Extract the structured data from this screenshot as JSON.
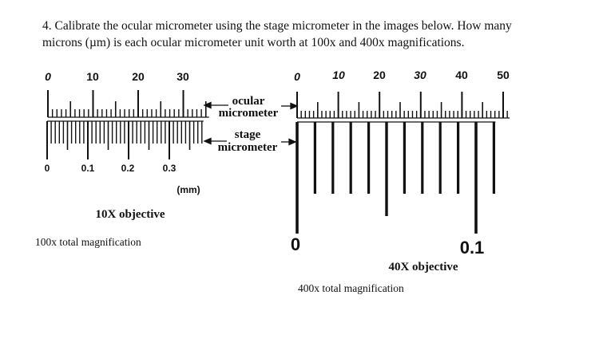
{
  "question": {
    "line1": "4. Calibrate the ocular micrometer using the stage micrometer in the images below. How many",
    "line2": "microns (µm) is each ocular micrometer unit worth at 100x and 400x magnifications."
  },
  "left_panel": {
    "ocular_scale_labels": [
      "0",
      "10",
      "20",
      "30"
    ],
    "stage_scale_labels": [
      "0",
      "0.1",
      "0.2",
      "0.3"
    ],
    "units_label": "(mm)",
    "objective_label": "10X objective",
    "magnification_caption": "100x total magnification"
  },
  "pointer_labels": {
    "ocular_line1": "ocular",
    "ocular_line2": "micrometer",
    "stage_line1": "stage",
    "stage_line2": "micrometer"
  },
  "right_panel": {
    "ocular_scale_labels": [
      "0",
      "10",
      "20",
      "30",
      "40",
      "50"
    ],
    "stage_scale_labels": [
      "0",
      "0.1"
    ],
    "objective_label": "40X objective",
    "magnification_caption": "400x total magnification"
  },
  "colors": {
    "ink": "#111111",
    "background": "#ffffff"
  }
}
